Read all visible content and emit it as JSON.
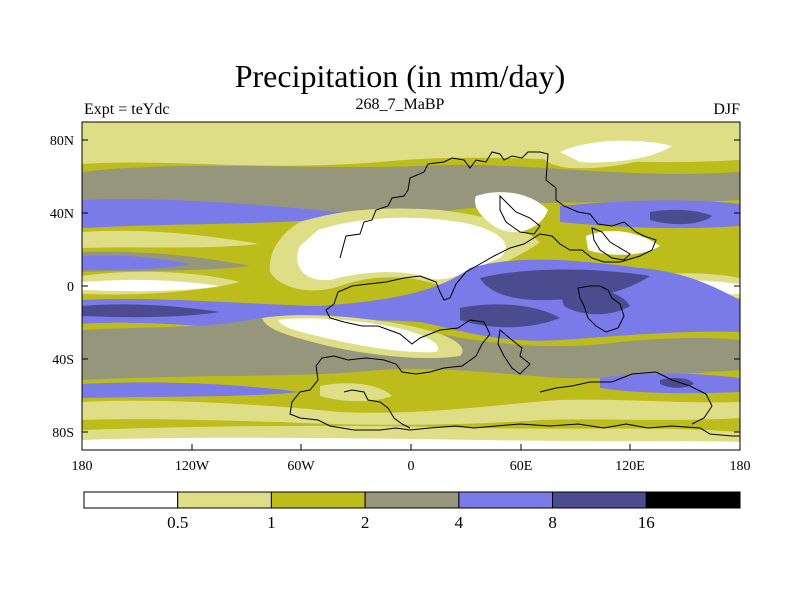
{
  "title": "Precipitation (in mm/day)",
  "left_label": "Expt = teYdc",
  "center_label": "268_7_MaBP",
  "right_label": "DJF",
  "lat_ticks": [
    "80N",
    "40N",
    "0",
    "40S",
    "80S"
  ],
  "lon_ticks": [
    "180",
    "120W",
    "60W",
    "0",
    "60E",
    "120E",
    "180"
  ],
  "colorbar": {
    "levels": [
      "0.5",
      "1",
      "2",
      "4",
      "8",
      "16"
    ],
    "colors": [
      "#ffffff",
      "#dede86",
      "#bcbc1b",
      "#96967c",
      "#7a7ae8",
      "#4b4b8f",
      "#000000"
    ]
  },
  "palette": {
    "white": "#ffffff",
    "light_yellow": "#dede86",
    "olive": "#bcbc1b",
    "gray": "#96967c",
    "blue": "#7a7ae8",
    "dark_blue": "#4b4b8f",
    "black": "#000000"
  }
}
